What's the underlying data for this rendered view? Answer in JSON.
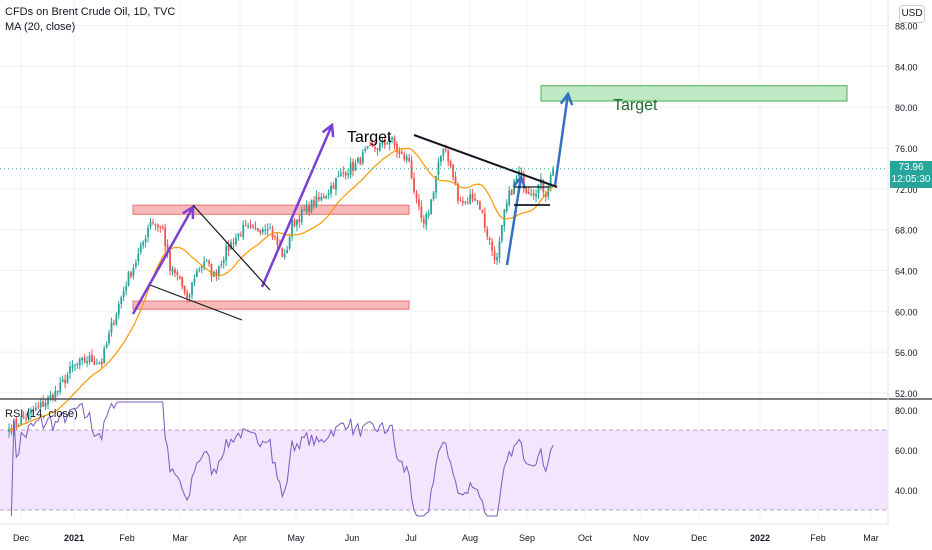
{
  "header": {
    "symbol_title": "CFDs on Brent Crude Oil, 1D, TVC",
    "ma_label": "MA (20, close)",
    "currency_button": "USD"
  },
  "rsi_pane": {
    "label": "RSI (14, close)"
  },
  "price_tag": {
    "value": "73.96",
    "countdown": "12:05:30",
    "color": "#26a69a"
  },
  "colors": {
    "up": "#26a69a",
    "down": "#ef5350",
    "ma": "#ff9800",
    "rsi_line": "#7e57c2",
    "rsi_band": "#f3e5fd",
    "zone_red": "#f8b9b9",
    "zone_green": "#bfe8c4",
    "arrow_purple": "#7b3fd4",
    "arrow_blue": "#3670c5"
  },
  "annotations": {
    "target_left": "Target",
    "target_right": "Target"
  },
  "chart_data": [
    {
      "type": "candlestick",
      "title": "CFDs on Brent Crude Oil, 1D, TVC",
      "ylim": [
        51.5,
        90.5
      ],
      "y_ticks": [
        "52.00",
        "56.00",
        "60.00",
        "64.00",
        "68.00",
        "72.00",
        "76.00",
        "80.00",
        "84.00",
        "88.00"
      ],
      "x_ticks": [
        "Dec",
        "2021",
        "Feb",
        "Mar",
        "Apr",
        "May",
        "Jun",
        "Jul",
        "Aug",
        "Sep",
        "Oct",
        "Nov",
        "Dec",
        "2022",
        "Feb",
        "Mar"
      ],
      "last_price": 73.96,
      "anchor_closes": [
        [
          0,
          48.5
        ],
        [
          12,
          50.5
        ],
        [
          20,
          52.2
        ],
        [
          26,
          54.5
        ],
        [
          32,
          55.3
        ],
        [
          38,
          55.0
        ],
        [
          42,
          58.5
        ],
        [
          48,
          62.8
        ],
        [
          54,
          66.0
        ],
        [
          58,
          69.0
        ],
        [
          63,
          68.0
        ],
        [
          66,
          64.0
        ],
        [
          70,
          63.2
        ],
        [
          73,
          60.8
        ],
        [
          76,
          63.5
        ],
        [
          80,
          65.0
        ],
        [
          84,
          63.5
        ],
        [
          88,
          65.5
        ],
        [
          92,
          67.0
        ],
        [
          96,
          68.0
        ],
        [
          100,
          67.8
        ],
        [
          106,
          68.6
        ],
        [
          110,
          66.5
        ],
        [
          113,
          65.2
        ],
        [
          116,
          68.5
        ],
        [
          120,
          69.5
        ],
        [
          124,
          70.5
        ],
        [
          128,
          71.0
        ],
        [
          134,
          72.8
        ],
        [
          138,
          73.8
        ],
        [
          142,
          74.3
        ],
        [
          146,
          75.5
        ],
        [
          150,
          76.0
        ],
        [
          154,
          76.4
        ],
        [
          156,
          77.1
        ],
        [
          160,
          75.3
        ],
        [
          164,
          74.8
        ],
        [
          167,
          70.5
        ],
        [
          170,
          68.2
        ],
        [
          173,
          70.8
        ],
        [
          176,
          74.5
        ],
        [
          179,
          75.8
        ],
        [
          182,
          73.5
        ],
        [
          184,
          70.8
        ],
        [
          187,
          70.5
        ],
        [
          190,
          71.5
        ],
        [
          193,
          70.3
        ],
        [
          195,
          68.4
        ],
        [
          198,
          66.0
        ],
        [
          200,
          65.0
        ],
        [
          203,
          69.5
        ],
        [
          205,
          71.3
        ],
        [
          207,
          72.5
        ],
        [
          209,
          73.5
        ],
        [
          212,
          72.0
        ],
        [
          215,
          71.8
        ],
        [
          218,
          72.5
        ],
        [
          220,
          71.6
        ],
        [
          223,
          73.96
        ]
      ],
      "ma_period": 20,
      "rsi": {
        "period": 14,
        "ylim": [
          25,
          85
        ],
        "y_ticks": [
          "40.00",
          "60.00",
          "80.00"
        ],
        "overbought": 70,
        "oversold": 30
      },
      "zones": [
        {
          "label": "",
          "y_range": [
            69.5,
            70.4
          ],
          "color": "red"
        },
        {
          "label": "",
          "y_range": [
            60.2,
            61.0
          ],
          "color": "red"
        },
        {
          "label": "Target",
          "y_range": [
            80.6,
            82.1
          ],
          "color": "green"
        }
      ]
    }
  ]
}
